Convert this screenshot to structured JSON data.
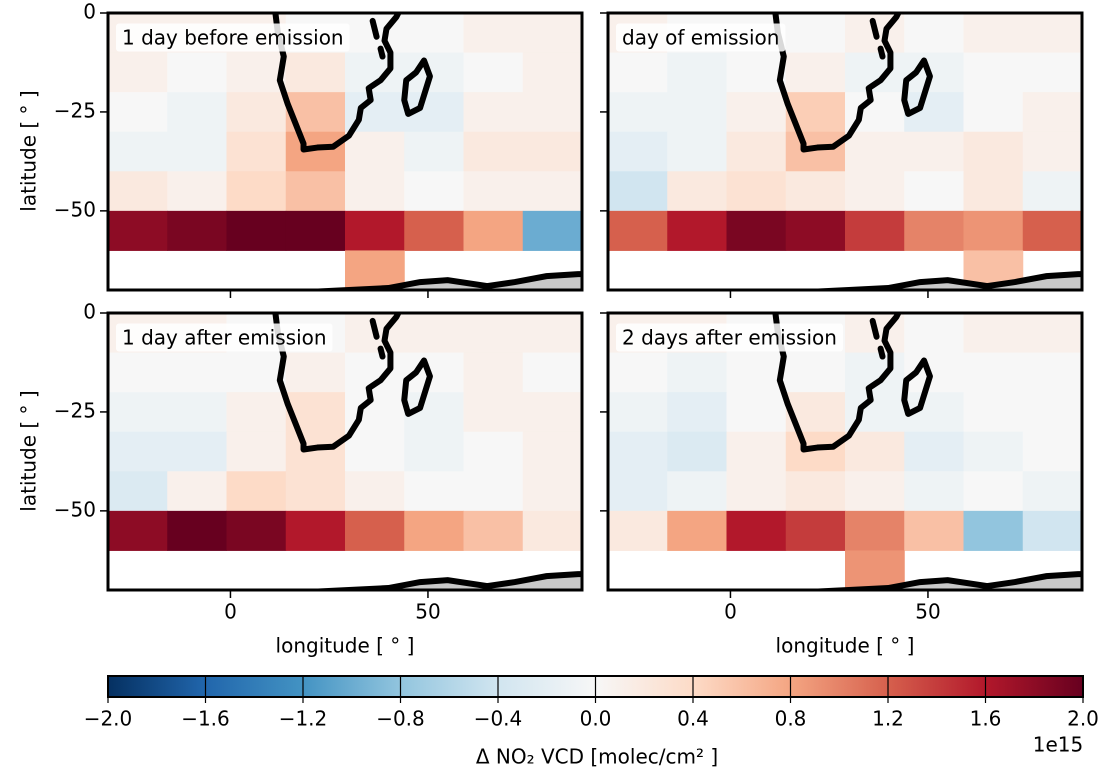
{
  "chart_data": {
    "type": "heatmap",
    "xlabel": "longitude [ ° ]",
    "ylabel": "latitude [ ° ]",
    "xlim": [
      -31,
      89
    ],
    "ylim": [
      -70,
      0
    ],
    "xticks": [
      0,
      50
    ],
    "yticks": [
      0,
      {
        "value": -25,
        "label": "−25"
      },
      {
        "value": -50,
        "label": "−50"
      }
    ],
    "x": [
      -23.5,
      -8.5,
      6.5,
      21.5,
      36.5,
      51.5,
      66.5,
      81.5
    ],
    "y": [
      -5,
      -15,
      -25,
      -35,
      -45,
      -55,
      -65
    ],
    "panels": [
      {
        "title": "1 day before emission",
        "values": [
          [
            0.1,
            0.1,
            0.1,
            0,
            0,
            0,
            0.1,
            0.1
          ],
          [
            0.1,
            0,
            0.1,
            0.2,
            -0.1,
            -0.1,
            0,
            0.1
          ],
          [
            0,
            -0.1,
            0.2,
            0.6,
            -0.2,
            -0.2,
            0.1,
            0.1
          ],
          [
            -0.1,
            -0.1,
            0.3,
            0.8,
            0.1,
            -0.1,
            0.2,
            0.2
          ],
          [
            0.2,
            0.1,
            0.4,
            0.6,
            0.1,
            0,
            0.1,
            0.1
          ],
          [
            1.8,
            1.9,
            2,
            2,
            1.6,
            1.2,
            0.8,
            -1
          ],
          [
            null,
            null,
            null,
            null,
            0.8,
            null,
            null,
            null
          ]
        ]
      },
      {
        "title": "day of emission",
        "values": [
          [
            0.1,
            0,
            0,
            0,
            0.1,
            0,
            0.1,
            0.1
          ],
          [
            0,
            -0.1,
            0,
            0.1,
            -0.1,
            -0.1,
            0,
            0
          ],
          [
            -0.1,
            -0.1,
            0.1,
            0.5,
            0,
            -0.2,
            0,
            0.1
          ],
          [
            -0.2,
            -0.1,
            0.2,
            0.6,
            0.1,
            0.1,
            0.2,
            0.1
          ],
          [
            -0.4,
            0.2,
            0.3,
            0.2,
            0.1,
            0,
            0.2,
            -0.1
          ],
          [
            1.2,
            1.6,
            1.9,
            1.8,
            1.4,
            1,
            0.9,
            1.2
          ],
          [
            null,
            null,
            null,
            null,
            null,
            null,
            0.6,
            null
          ]
        ]
      },
      {
        "title": "1 day after emission",
        "values": [
          [
            0.1,
            0.1,
            0,
            0,
            0.1,
            0.1,
            0.1,
            0.1
          ],
          [
            0,
            0,
            0,
            0.1,
            0,
            0,
            0.1,
            0
          ],
          [
            -0.1,
            -0.1,
            0.1,
            0.3,
            0,
            -0.1,
            0.1,
            0.1
          ],
          [
            -0.2,
            -0.2,
            0.1,
            0.3,
            0,
            -0.1,
            0,
            0.1
          ],
          [
            -0.3,
            0.1,
            0.4,
            0.3,
            0.1,
            0,
            0,
            0.1
          ],
          [
            1.8,
            2,
            1.9,
            1.6,
            1.2,
            0.8,
            0.6,
            0.2
          ],
          [
            null,
            null,
            null,
            null,
            null,
            null,
            null,
            null
          ]
        ]
      },
      {
        "title": "2 days after emission",
        "values": [
          [
            0.1,
            0.1,
            0,
            0,
            0.1,
            0,
            0.1,
            0.1
          ],
          [
            0,
            -0.1,
            0,
            0,
            -0.1,
            0,
            0,
            0
          ],
          [
            -0.1,
            -0.2,
            0,
            0.2,
            -0.1,
            -0.1,
            0,
            0
          ],
          [
            -0.2,
            -0.3,
            0.1,
            0.4,
            0.2,
            -0.2,
            -0.1,
            0
          ],
          [
            -0.2,
            -0.1,
            0.1,
            0.2,
            0.1,
            -0.1,
            0,
            -0.1
          ],
          [
            0.2,
            0.8,
            1.6,
            1.4,
            1,
            0.6,
            -0.8,
            -0.4
          ],
          [
            null,
            null,
            null,
            null,
            0.9,
            null,
            null,
            null
          ]
        ]
      }
    ],
    "colorbar": {
      "label": "Δ NO₂ VCD [molec/cm² ]",
      "offset_label": "1e15",
      "lim": [
        -2,
        2
      ],
      "ticks": [
        {
          "value": -2,
          "label": "−2.0"
        },
        {
          "value": -1.6,
          "label": "−1.6"
        },
        {
          "value": -1.2,
          "label": "−1.2"
        },
        {
          "value": -0.8,
          "label": "−0.8"
        },
        {
          "value": -0.4,
          "label": "−0.4"
        },
        {
          "value": 0,
          "label": "0.0"
        },
        0.4,
        0.8,
        1.2,
        1.6,
        {
          "value": 2,
          "label": "2.0"
        }
      ],
      "colors": [
        "#053061",
        "#2166ac",
        "#4393c3",
        "#92c5de",
        "#d1e5f0",
        "#f7f7f7",
        "#fddbc7",
        "#f4a582",
        "#d6604d",
        "#b2182b",
        "#67001f"
      ]
    }
  }
}
